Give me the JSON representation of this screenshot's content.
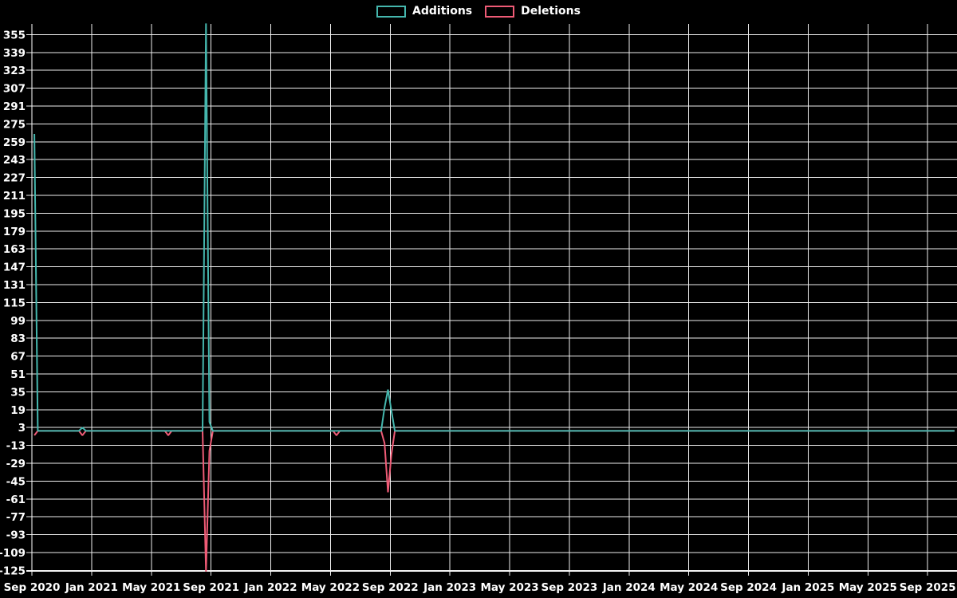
{
  "legend": {
    "items": [
      {
        "label": "Additions",
        "color": "#45b7ae"
      },
      {
        "label": "Deletions",
        "color": "#ef5b76"
      }
    ]
  },
  "colors": {
    "background": "#000000",
    "grid": "#eeeeee",
    "axis": "#ffffff",
    "text": "#ffffff",
    "additions": "#45b7ae",
    "deletions": "#ef5b76"
  },
  "chart_data": {
    "type": "line",
    "title": "",
    "xlabel": "",
    "ylabel": "",
    "grid": true,
    "legend_position": "top-center",
    "x_ticks": [
      "Sep 2020",
      "Jan 2021",
      "May 2021",
      "Sep 2021",
      "Jan 2022",
      "May 2022",
      "Sep 2022",
      "Jan 2023",
      "May 2023",
      "Sep 2023",
      "Jan 2024",
      "May 2024",
      "Sep 2024",
      "Jan 2025",
      "May 2025",
      "Sep 2025"
    ],
    "x_tick_interval_months": 4,
    "y_ticks": [
      355,
      339,
      323,
      307,
      291,
      275,
      259,
      243,
      227,
      211,
      195,
      179,
      163,
      147,
      131,
      115,
      99,
      83,
      67,
      51,
      35,
      19,
      3,
      -13,
      -29,
      -45,
      -61,
      -77,
      -93,
      -109,
      -125
    ],
    "ylim": [
      -126,
      365
    ],
    "x_range": {
      "start_week": "2020-09-06",
      "end_week": "2025-10-26",
      "step": "week"
    },
    "series": [
      {
        "name": "Additions",
        "color": "#45b7ae",
        "baseline_value": 0
      },
      {
        "name": "Deletions",
        "color": "#ef5b76",
        "baseline_value": 0
      }
    ],
    "note": "weekly data; every week not listed below has additions=0 and deletions=0",
    "nonzero_weeks": [
      {
        "week": "2020-09-06",
        "additions": 266,
        "deletions": -4
      },
      {
        "week": "2020-12-13",
        "additions": 3,
        "deletions": -4
      },
      {
        "week": "2021-06-06",
        "additions": 0,
        "deletions": -4
      },
      {
        "week": "2021-08-22",
        "additions": 365,
        "deletions": -126
      },
      {
        "week": "2021-08-29",
        "additions": 8,
        "deletions": -18
      },
      {
        "week": "2022-05-15",
        "additions": 0,
        "deletions": -4
      },
      {
        "week": "2022-08-21",
        "additions": 21,
        "deletions": -11
      },
      {
        "week": "2022-08-28",
        "additions": 37,
        "deletions": -55
      },
      {
        "week": "2022-09-04",
        "additions": 18,
        "deletions": -21
      }
    ]
  }
}
